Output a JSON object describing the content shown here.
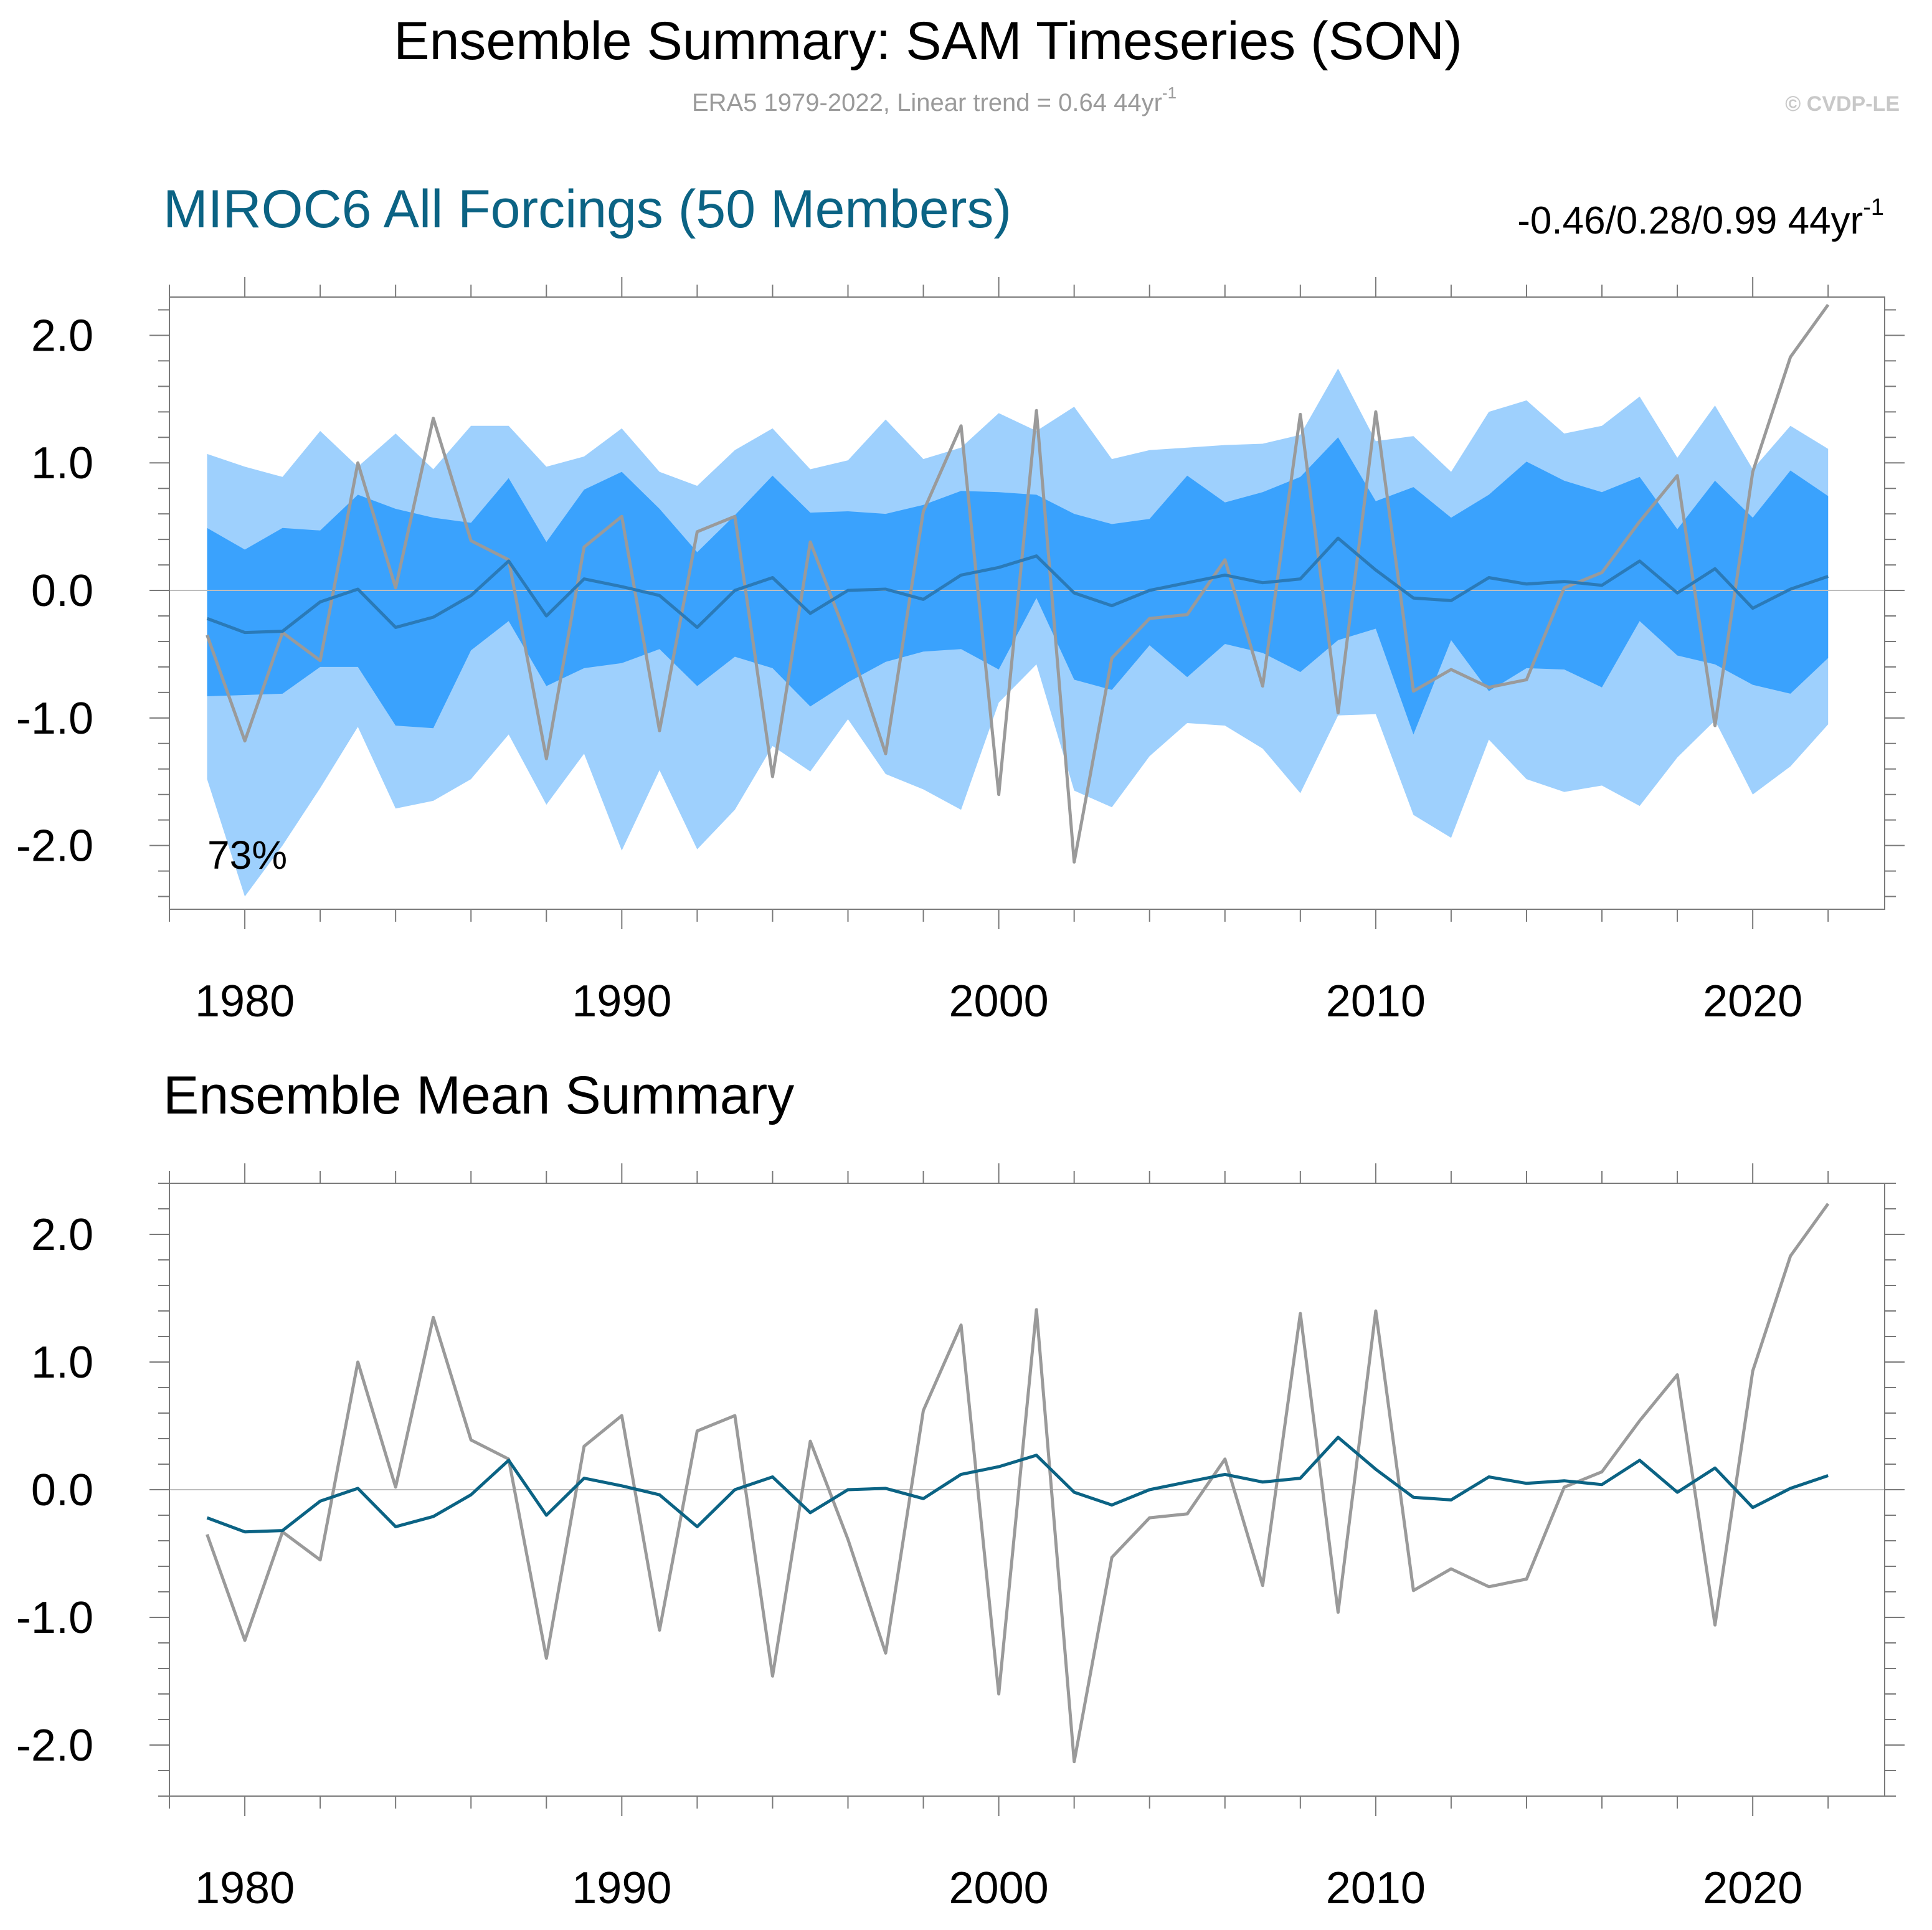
{
  "header": {
    "title": "Ensemble Summary: SAM Timeseries (SON)",
    "subtitle_main": "ERA5 1979-2022, Linear trend = 0.64 44yr",
    "subtitle_sup": "-1",
    "copyright": "© CVDP-LE"
  },
  "colors": {
    "outer_band": "#9ed0fd",
    "inner_band": "#3aa2fd",
    "ensemble_mean_top": "#2a7ab8",
    "ensemble_mean_bottom": "#0b6384",
    "obs": "#9a9a9a",
    "panel_title": "#0b6384",
    "subtitle": "#9a9a9a",
    "copyright": "#c8c8c8"
  },
  "chart_data": [
    {
      "type": "area",
      "title": "MIROC6 All Forcings (50 Members)",
      "trend_main": "-0.46/0.28/0.99 44yr",
      "trend_sup": "-1",
      "annotation": "73%",
      "xlim": [
        1978,
        2023.5
      ],
      "ylim": [
        -2.5,
        2.3
      ],
      "x_ticks": [
        1980,
        1990,
        2000,
        2010,
        2020
      ],
      "x_tick_labels": [
        "1980",
        "1990",
        "2000",
        "2010",
        "2020"
      ],
      "y_ticks": [
        2.0,
        1.0,
        0.0,
        -1.0,
        -2.0
      ],
      "y_tick_labels": [
        "2.0",
        "1.0",
        "0.0",
        "-1.0",
        "-2.0"
      ],
      "x": [
        1979,
        1980,
        1981,
        1982,
        1983,
        1984,
        1985,
        1986,
        1987,
        1988,
        1989,
        1990,
        1991,
        1992,
        1993,
        1994,
        1995,
        1996,
        1997,
        1998,
        1999,
        2000,
        2001,
        2002,
        2003,
        2004,
        2005,
        2006,
        2007,
        2008,
        2009,
        2010,
        2011,
        2012,
        2013,
        2014,
        2015,
        2016,
        2017,
        2018,
        2019,
        2020,
        2021,
        2022
      ],
      "series": [
        {
          "name": "outer_upper",
          "values": [
            1.07,
            0.97,
            0.89,
            1.25,
            0.97,
            1.23,
            0.95,
            1.29,
            1.29,
            0.97,
            1.05,
            1.27,
            0.93,
            0.82,
            1.1,
            1.27,
            0.95,
            1.02,
            1.34,
            1.03,
            1.12,
            1.39,
            1.25,
            1.44,
            1.03,
            1.1,
            1.12,
            1.14,
            1.15,
            1.22,
            1.74,
            1.17,
            1.21,
            0.93,
            1.4,
            1.49,
            1.23,
            1.29,
            1.52,
            1.04,
            1.45,
            0.95,
            1.29,
            1.11
          ]
        },
        {
          "name": "inner_upper",
          "values": [
            0.49,
            0.32,
            0.49,
            0.47,
            0.75,
            0.64,
            0.57,
            0.53,
            0.88,
            0.38,
            0.79,
            0.93,
            0.64,
            0.3,
            0.59,
            0.9,
            0.61,
            0.62,
            0.6,
            0.67,
            0.78,
            0.77,
            0.75,
            0.6,
            0.52,
            0.56,
            0.9,
            0.69,
            0.77,
            0.89,
            1.2,
            0.7,
            0.81,
            0.57,
            0.75,
            1.01,
            0.86,
            0.77,
            0.89,
            0.48,
            0.86,
            0.57,
            0.94,
            0.74
          ]
        },
        {
          "name": "ensemble_mean",
          "values": [
            -0.22,
            -0.33,
            -0.32,
            -0.09,
            0.01,
            -0.29,
            -0.21,
            -0.04,
            0.23,
            -0.2,
            0.09,
            0.03,
            -0.04,
            -0.29,
            0.0,
            0.1,
            -0.18,
            0.0,
            0.01,
            -0.07,
            0.12,
            0.18,
            0.27,
            -0.02,
            -0.12,
            0.0,
            0.06,
            0.12,
            0.06,
            0.09,
            0.41,
            0.16,
            -0.06,
            -0.08,
            0.1,
            0.05,
            0.07,
            0.04,
            0.23,
            -0.02,
            0.17,
            -0.14,
            0.01,
            0.11
          ]
        },
        {
          "name": "inner_lower",
          "values": [
            -0.83,
            -0.82,
            -0.81,
            -0.6,
            -0.6,
            -1.06,
            -1.08,
            -0.47,
            -0.24,
            -0.75,
            -0.61,
            -0.57,
            -0.46,
            -0.75,
            -0.52,
            -0.61,
            -0.91,
            -0.72,
            -0.56,
            -0.48,
            -0.46,
            -0.62,
            -0.06,
            -0.7,
            -0.78,
            -0.43,
            -0.68,
            -0.42,
            -0.49,
            -0.64,
            -0.39,
            -0.3,
            -1.13,
            -0.39,
            -0.79,
            -0.61,
            -0.62,
            -0.76,
            -0.24,
            -0.51,
            -0.58,
            -0.74,
            -0.81,
            -0.53
          ]
        },
        {
          "name": "outer_lower",
          "values": [
            -1.48,
            -2.4,
            -2.0,
            -1.55,
            -1.07,
            -1.71,
            -1.65,
            -1.48,
            -1.13,
            -1.68,
            -1.28,
            -2.04,
            -1.41,
            -2.03,
            -1.72,
            -1.22,
            -1.42,
            -1.01,
            -1.44,
            -1.56,
            -1.72,
            -0.88,
            -0.58,
            -1.57,
            -1.7,
            -1.3,
            -1.04,
            -1.06,
            -1.24,
            -1.59,
            -0.98,
            -0.97,
            -1.76,
            -1.94,
            -1.17,
            -1.48,
            -1.58,
            -1.53,
            -1.69,
            -1.31,
            -1.02,
            -1.6,
            -1.38,
            -1.05
          ]
        },
        {
          "name": "ERA5",
          "values": [
            -0.35,
            -1.18,
            -0.33,
            -0.55,
            1.0,
            0.02,
            1.35,
            0.39,
            0.24,
            -1.32,
            0.34,
            0.58,
            -1.1,
            0.46,
            0.58,
            -1.46,
            0.38,
            -0.39,
            -1.28,
            0.62,
            1.29,
            -1.6,
            1.41,
            -2.13,
            -0.53,
            -0.22,
            -0.19,
            0.24,
            -0.75,
            1.38,
            -0.96,
            1.4,
            -0.79,
            -0.62,
            -0.76,
            -0.7,
            0.02,
            0.14,
            0.54,
            0.9,
            -1.06,
            0.93,
            1.83,
            2.24
          ]
        }
      ]
    },
    {
      "type": "line",
      "title": "Ensemble Mean Summary",
      "xlim": [
        1978,
        2023.5
      ],
      "ylim": [
        -2.4,
        2.4
      ],
      "x_ticks": [
        1980,
        1990,
        2000,
        2010,
        2020
      ],
      "x_tick_labels": [
        "1980",
        "1990",
        "2000",
        "2010",
        "2020"
      ],
      "y_ticks": [
        2.0,
        1.0,
        0.0,
        -1.0,
        -2.0
      ],
      "y_tick_labels": [
        "2.0",
        "1.0",
        "0.0",
        "-1.0",
        "-2.0"
      ],
      "x": [
        1979,
        1980,
        1981,
        1982,
        1983,
        1984,
        1985,
        1986,
        1987,
        1988,
        1989,
        1990,
        1991,
        1992,
        1993,
        1994,
        1995,
        1996,
        1997,
        1998,
        1999,
        2000,
        2001,
        2002,
        2003,
        2004,
        2005,
        2006,
        2007,
        2008,
        2009,
        2010,
        2011,
        2012,
        2013,
        2014,
        2015,
        2016,
        2017,
        2018,
        2019,
        2020,
        2021,
        2022
      ],
      "series": [
        {
          "name": "ensemble_mean",
          "values": [
            -0.22,
            -0.33,
            -0.32,
            -0.09,
            0.01,
            -0.29,
            -0.21,
            -0.04,
            0.23,
            -0.2,
            0.09,
            0.03,
            -0.04,
            -0.29,
            0.0,
            0.1,
            -0.18,
            0.0,
            0.01,
            -0.07,
            0.12,
            0.18,
            0.27,
            -0.02,
            -0.12,
            0.0,
            0.06,
            0.12,
            0.06,
            0.09,
            0.41,
            0.16,
            -0.06,
            -0.08,
            0.1,
            0.05,
            0.07,
            0.04,
            0.23,
            -0.02,
            0.17,
            -0.14,
            0.01,
            0.11
          ]
        },
        {
          "name": "ERA5",
          "values": [
            -0.35,
            -1.18,
            -0.33,
            -0.55,
            1.0,
            0.02,
            1.35,
            0.39,
            0.24,
            -1.32,
            0.34,
            0.58,
            -1.1,
            0.46,
            0.58,
            -1.46,
            0.38,
            -0.39,
            -1.28,
            0.62,
            1.29,
            -1.6,
            1.41,
            -2.13,
            -0.53,
            -0.22,
            -0.19,
            0.24,
            -0.75,
            1.38,
            -0.96,
            1.4,
            -0.79,
            -0.62,
            -0.76,
            -0.7,
            0.02,
            0.14,
            0.54,
            0.9,
            -1.06,
            0.93,
            1.83,
            2.24
          ]
        }
      ]
    }
  ]
}
